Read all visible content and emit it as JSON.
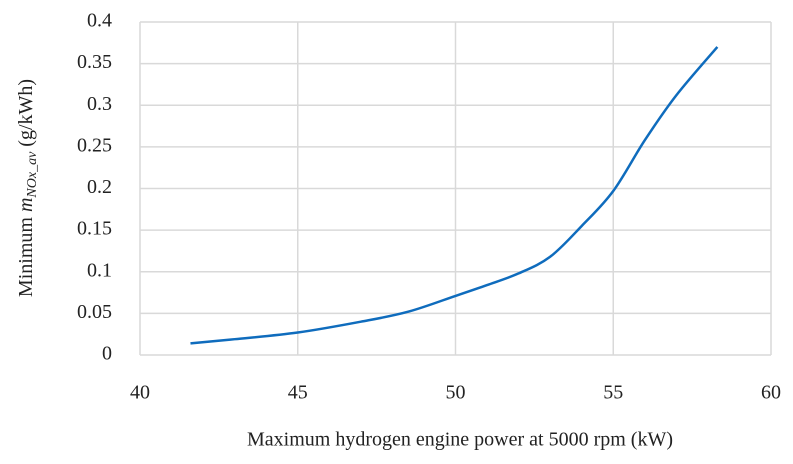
{
  "chart_data": {
    "type": "line",
    "xlabel": "Maximum hydrogen engine power at 5000 rpm (kW)",
    "ylabel": {
      "prefix": "Minimum",
      "symbol": "m",
      "subscript": "NOx_av",
      "unit": "(g/kWh)"
    },
    "x": [
      41.6,
      43,
      45,
      47,
      48.5,
      50,
      51,
      52,
      53,
      54,
      55,
      56,
      57,
      58.3
    ],
    "series": [
      {
        "name": "Minimum NOx",
        "color": "#0f6cbd",
        "values": [
          0.014,
          0.019,
          0.027,
          0.04,
          0.052,
          0.071,
          0.084,
          0.098,
          0.118,
          0.155,
          0.197,
          0.258,
          0.312,
          0.37
        ]
      }
    ],
    "xlim": [
      40,
      60
    ],
    "xticks": [
      40,
      45,
      50,
      55,
      60
    ],
    "ylim": [
      0,
      0.4
    ],
    "yticks": [
      0,
      0.05,
      0.1,
      0.15,
      0.2,
      0.25,
      0.3,
      0.35,
      0.4
    ],
    "grid": true
  }
}
